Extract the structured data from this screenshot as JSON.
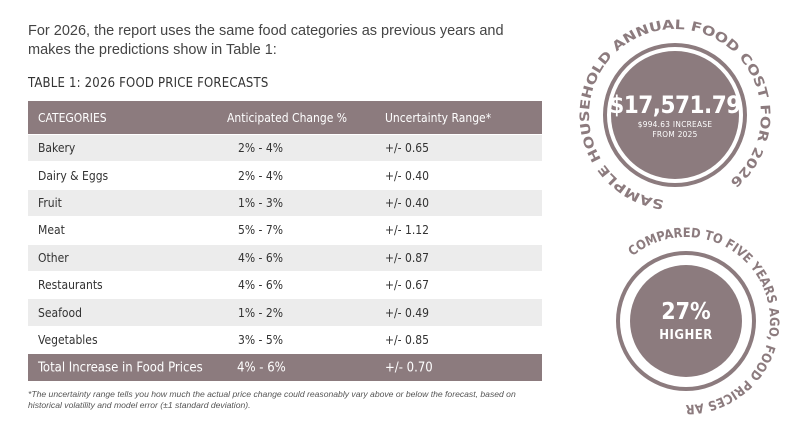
{
  "intro": "For 2026, the report uses the same food categories as previous years and makes the predictions show in Table 1:",
  "table": {
    "title": "TABLE 1: 2026 FOOD PRICE FORECASTS",
    "headers": [
      "CATEGORIES",
      "Anticipated Change %",
      "Uncertainty Range*"
    ],
    "rows": [
      {
        "category": "Bakery",
        "change": "2% - 4%",
        "range": "+/- 0.65"
      },
      {
        "category": "Dairy & Eggs",
        "change": "2% - 4%",
        "range": "+/- 0.40"
      },
      {
        "category": "Fruit",
        "change": "1% - 3%",
        "range": "+/- 0.40"
      },
      {
        "category": "Meat",
        "change": "5% - 7%",
        "range": "+/- 1.12"
      },
      {
        "category": "Other",
        "change": "4% - 6%",
        "range": "+/- 0.87"
      },
      {
        "category": "Restaurants",
        "change": "4% - 6%",
        "range": "+/- 0.67"
      },
      {
        "category": "Seafood",
        "change": "1% - 2%",
        "range": "+/- 0.49"
      },
      {
        "category": "Vegetables",
        "change": "3% - 5%",
        "range": "+/- 0.85"
      }
    ],
    "total": {
      "category": "Total Increase in Food Prices",
      "change": "4% - 6%",
      "range": "+/- 0.70"
    },
    "footnote": "*The uncertainty range tells you how much the actual price change could reasonably vary above or below the forecast, based on historical volatility and model error (±1 standard deviation)."
  },
  "badge_cost": {
    "ring_text": "SAMPLE HOUSEHOLD ANNUAL FOOD COST FOR 2026",
    "amount": "$17,571.79",
    "increase_line1": "$994.63 INCREASE",
    "increase_line2": "FROM 2025"
  },
  "badge_compare": {
    "ring_text": "COMPARED TO FIVE YEARS AGO, FOOD PRICES ARE",
    "percent": "27%",
    "label": "HIGHER"
  },
  "colors": {
    "accent": "#8c7b7e",
    "row_alt": "#ececec"
  }
}
